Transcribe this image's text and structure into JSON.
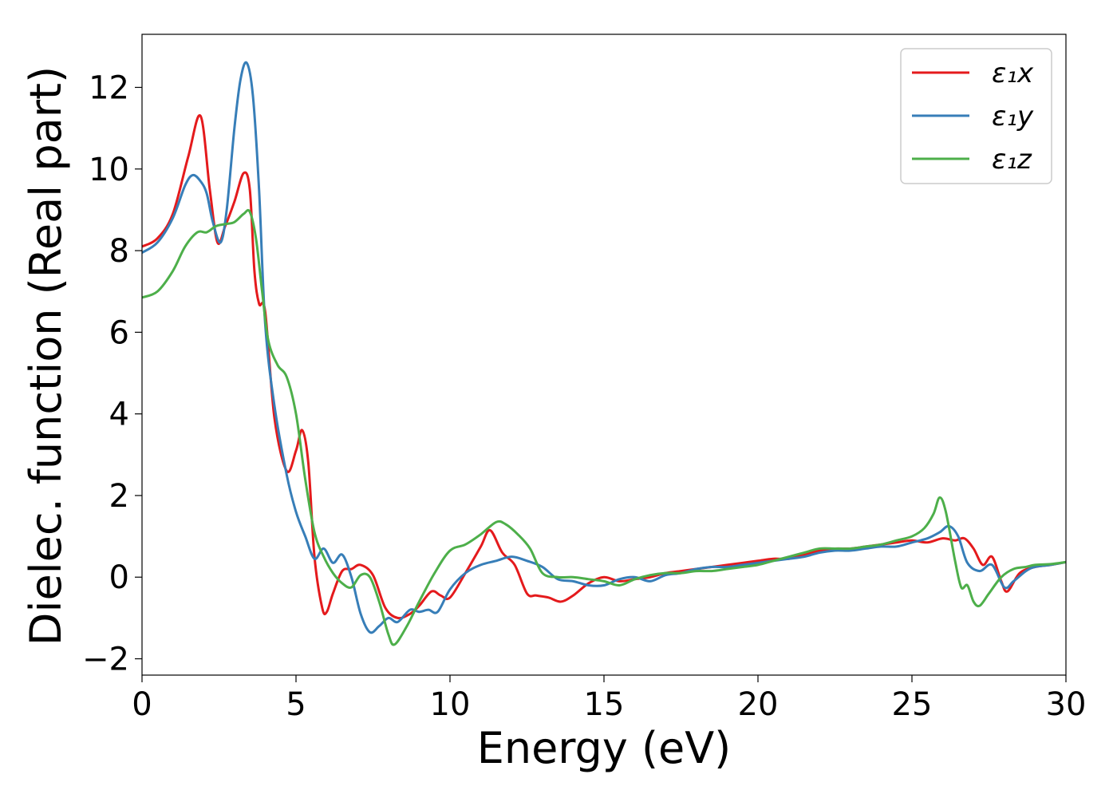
{
  "chart_data": {
    "type": "line",
    "title": "",
    "xlabel": "Energy (eV)",
    "ylabel": "Dielec. function (Real part)",
    "xlim": [
      0,
      30
    ],
    "ylim": [
      -2.4,
      13.3
    ],
    "xticks": [
      0,
      5,
      10,
      15,
      20,
      25,
      30
    ],
    "yticks": [
      -2,
      0,
      2,
      4,
      6,
      8,
      10,
      12
    ],
    "ytick_labels": [
      "−2",
      "0",
      "2",
      "4",
      "6",
      "8",
      "10",
      "12"
    ],
    "grid": false,
    "legend_position": "top-right",
    "series": [
      {
        "name": "ε₁x",
        "color": "#e41a1c",
        "x": [
          0,
          0.5,
          1.0,
          1.5,
          1.9,
          2.2,
          2.45,
          2.7,
          3.0,
          3.3,
          3.5,
          3.65,
          3.8,
          4.0,
          4.3,
          4.7,
          5.0,
          5.2,
          5.4,
          5.6,
          5.85,
          6.0,
          6.2,
          6.5,
          6.8,
          7.1,
          7.5,
          7.9,
          8.3,
          8.7,
          9.0,
          9.4,
          9.7,
          10.0,
          10.5,
          11.0,
          11.3,
          11.7,
          12.1,
          12.5,
          12.8,
          13.2,
          13.6,
          14.0,
          14.5,
          15.0,
          15.5,
          16.0,
          16.5,
          17.0,
          17.5,
          18.0,
          18.5,
          19.0,
          19.5,
          20.0,
          20.5,
          21.0,
          21.5,
          22.0,
          22.5,
          23.0,
          23.5,
          24.0,
          24.5,
          25.0,
          25.5,
          26.0,
          26.4,
          26.7,
          27.0,
          27.3,
          27.6,
          27.9,
          28.1,
          28.5,
          29.0,
          29.5,
          30.0
        ],
        "values": [
          8.1,
          8.3,
          8.9,
          10.3,
          11.3,
          9.5,
          8.2,
          8.6,
          9.2,
          9.9,
          9.5,
          7.5,
          6.7,
          6.5,
          3.9,
          2.6,
          3.1,
          3.6,
          2.8,
          0.5,
          -0.75,
          -0.85,
          -0.4,
          0.15,
          0.2,
          0.3,
          0.05,
          -0.75,
          -1.0,
          -0.9,
          -0.7,
          -0.35,
          -0.45,
          -0.5,
          0.1,
          0.75,
          1.15,
          0.6,
          0.3,
          -0.4,
          -0.45,
          -0.5,
          -0.6,
          -0.45,
          -0.15,
          0.0,
          -0.1,
          -0.05,
          0.0,
          0.1,
          0.15,
          0.2,
          0.25,
          0.3,
          0.35,
          0.4,
          0.45,
          0.45,
          0.55,
          0.65,
          0.7,
          0.7,
          0.75,
          0.8,
          0.85,
          0.9,
          0.85,
          0.95,
          0.9,
          0.95,
          0.7,
          0.3,
          0.5,
          -0.1,
          -0.35,
          0.1,
          0.25,
          0.3,
          0.37
        ]
      },
      {
        "name": "ε₁y",
        "color": "#377eb8",
        "x": [
          0,
          0.5,
          1.0,
          1.4,
          1.65,
          1.9,
          2.1,
          2.3,
          2.55,
          2.75,
          3.0,
          3.2,
          3.4,
          3.6,
          3.8,
          4.0,
          4.3,
          4.7,
          5.0,
          5.3,
          5.6,
          5.9,
          6.2,
          6.5,
          6.8,
          7.1,
          7.4,
          7.7,
          8.0,
          8.3,
          8.7,
          9.0,
          9.3,
          9.6,
          10.0,
          10.5,
          11.0,
          11.5,
          12.0,
          12.5,
          13.0,
          13.5,
          14.0,
          14.5,
          15.0,
          15.5,
          16.0,
          16.5,
          17.0,
          17.5,
          18.0,
          18.5,
          19.0,
          19.5,
          20.0,
          20.5,
          21.0,
          21.5,
          22.0,
          22.5,
          23.0,
          23.5,
          24.0,
          24.5,
          25.0,
          25.5,
          25.9,
          26.2,
          26.5,
          26.8,
          27.2,
          27.6,
          28.0,
          28.3,
          28.7,
          29.0,
          29.5,
          30.0
        ],
        "values": [
          7.95,
          8.2,
          8.8,
          9.6,
          9.85,
          9.7,
          9.4,
          8.7,
          8.2,
          9.0,
          11.0,
          12.2,
          12.6,
          11.8,
          9.5,
          6.2,
          4.2,
          2.5,
          1.6,
          1.0,
          0.45,
          0.7,
          0.35,
          0.55,
          0.0,
          -0.9,
          -1.35,
          -1.2,
          -1.0,
          -1.1,
          -0.8,
          -0.85,
          -0.8,
          -0.85,
          -0.3,
          0.1,
          0.3,
          0.4,
          0.5,
          0.4,
          0.25,
          -0.05,
          -0.1,
          -0.2,
          -0.2,
          -0.05,
          0.0,
          -0.1,
          0.05,
          0.1,
          0.2,
          0.25,
          0.25,
          0.3,
          0.35,
          0.4,
          0.45,
          0.5,
          0.6,
          0.65,
          0.65,
          0.7,
          0.75,
          0.75,
          0.85,
          0.95,
          1.1,
          1.25,
          1.0,
          0.35,
          0.15,
          0.3,
          -0.25,
          -0.1,
          0.15,
          0.25,
          0.3,
          0.37
        ]
      },
      {
        "name": "ε₁z",
        "color": "#4daf4a",
        "x": [
          0,
          0.5,
          1.0,
          1.4,
          1.8,
          2.1,
          2.4,
          2.7,
          3.0,
          3.3,
          3.5,
          3.7,
          3.9,
          4.1,
          4.4,
          4.7,
          5.0,
          5.3,
          5.6,
          5.9,
          6.2,
          6.5,
          6.8,
          7.1,
          7.4,
          7.7,
          8.0,
          8.2,
          8.6,
          9.0,
          9.5,
          10.0,
          10.5,
          11.0,
          11.5,
          11.8,
          12.2,
          12.6,
          13.0,
          13.5,
          14.0,
          14.5,
          15.0,
          15.5,
          16.0,
          16.5,
          17.0,
          17.5,
          18.0,
          18.5,
          19.0,
          19.5,
          20.0,
          20.5,
          21.0,
          21.5,
          22.0,
          22.5,
          23.0,
          23.5,
          24.0,
          24.5,
          25.0,
          25.4,
          25.7,
          25.9,
          26.1,
          26.4,
          26.6,
          26.8,
          27.0,
          27.2,
          27.5,
          27.9,
          28.3,
          28.7,
          29.0,
          29.5,
          30.0
        ],
        "values": [
          6.85,
          7.0,
          7.5,
          8.1,
          8.45,
          8.45,
          8.6,
          8.65,
          8.7,
          8.9,
          8.95,
          8.3,
          7.0,
          5.8,
          5.2,
          4.9,
          4.0,
          2.4,
          1.1,
          0.5,
          0.1,
          -0.15,
          -0.25,
          0.05,
          0.0,
          -0.6,
          -1.4,
          -1.65,
          -1.2,
          -0.6,
          0.1,
          0.65,
          0.8,
          1.05,
          1.35,
          1.3,
          1.05,
          0.7,
          0.1,
          0.0,
          0.0,
          -0.05,
          -0.1,
          -0.2,
          -0.05,
          0.05,
          0.1,
          0.1,
          0.15,
          0.15,
          0.2,
          0.25,
          0.3,
          0.4,
          0.5,
          0.6,
          0.7,
          0.7,
          0.7,
          0.75,
          0.8,
          0.9,
          1.0,
          1.2,
          1.55,
          1.95,
          1.6,
          0.4,
          -0.25,
          -0.2,
          -0.6,
          -0.7,
          -0.4,
          0.0,
          0.2,
          0.25,
          0.3,
          0.32,
          0.37
        ]
      }
    ]
  }
}
